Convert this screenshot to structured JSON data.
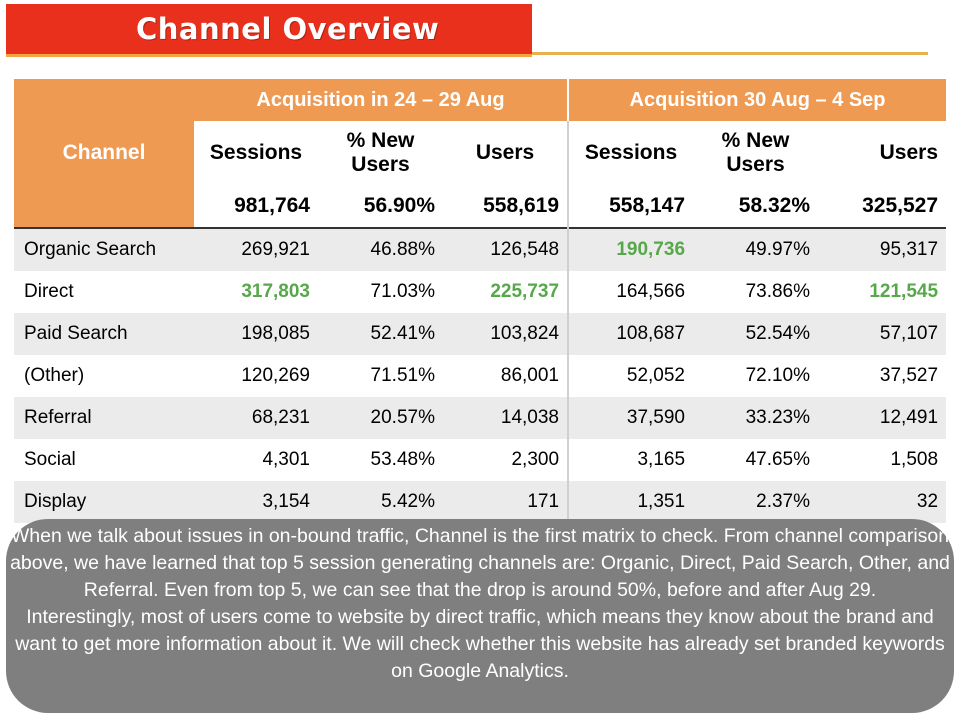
{
  "title": "Channel Overview",
  "table": {
    "channel_header": "Channel",
    "group1_header": "Acquisition in 24 – 29 Aug",
    "group2_header": "Acquisition 30 Aug – 4 Sep",
    "col_sessions": "Sessions",
    "col_new_users_line1": "% New",
    "col_new_users_line2": "Users",
    "col_users": "Users",
    "totals": [
      "981,764",
      "56.90%",
      "558,619",
      "558,147",
      "58.32%",
      "325,527"
    ],
    "rows": [
      {
        "channel": "Organic Search",
        "values": [
          "269,921",
          "46.88%",
          "126,548",
          "190,736",
          "49.97%",
          "95,317"
        ]
      },
      {
        "channel": "Direct",
        "values": [
          "317,803",
          "71.03%",
          "225,737",
          "164,566",
          "73.86%",
          "121,545"
        ]
      },
      {
        "channel": "Paid Search",
        "values": [
          "198,085",
          "52.41%",
          "103,824",
          "108,687",
          "52.54%",
          "57,107"
        ]
      },
      {
        "channel": "(Other)",
        "values": [
          "120,269",
          "71.51%",
          "86,001",
          "52,052",
          "72.10%",
          "37,527"
        ]
      },
      {
        "channel": "Referral",
        "values": [
          "68,231",
          "20.57%",
          "14,038",
          "37,590",
          "33.23%",
          "12,491"
        ]
      },
      {
        "channel": "Social",
        "values": [
          "4,301",
          "53.48%",
          "2,300",
          "3,165",
          "47.65%",
          "1,508"
        ]
      },
      {
        "channel": "Display",
        "values": [
          "3,154",
          "5.42%",
          "171",
          "1,351",
          "2.37%",
          "32"
        ]
      }
    ],
    "highlight_color": "#57a84a"
  },
  "note": {
    "paragraph1": "When we talk about issues in on-bound traffic, Channel is the first matrix to check. From channel comparison above, we have learned that top 5 session generating channels are: Organic, Direct, Paid Search, Other, and Referral. Even from top 5, we can see that the drop is around 50%, before and after Aug 29.",
    "paragraph2": "Interestingly, most of users come to website by direct traffic, which means they know about the brand and want to get more information about it. We will check whether this website has already set branded keywords on Google Analytics."
  }
}
